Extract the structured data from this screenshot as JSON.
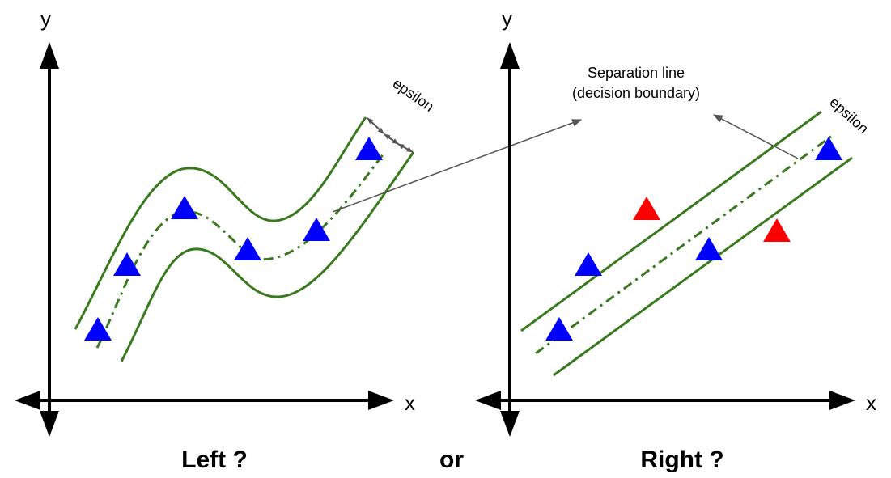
{
  "left_panel": {
    "x_label": "x",
    "y_label": "y",
    "epsilon_label": "epsilon",
    "caption": "Left ?"
  },
  "right_panel": {
    "x_label": "x",
    "y_label": "y",
    "epsilon_label": "epsilon",
    "caption": "Right ?"
  },
  "separator_text": "or",
  "annotation": {
    "line1": "Separation line",
    "line2": "(decision boundary)"
  },
  "colors": {
    "axis": "#000000",
    "boundary": "#3a7a1e",
    "class_a": "#0000ff",
    "class_b": "#ff0000",
    "arrow": "#555555"
  }
}
